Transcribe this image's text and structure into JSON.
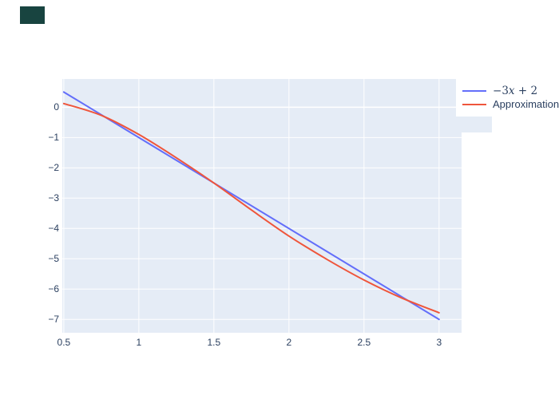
{
  "page": {
    "background": "#ffffff",
    "text_color": "#2a3f5f"
  },
  "corner_badge": {
    "color": "#184440"
  },
  "chart_data": {
    "type": "line",
    "title": "",
    "xlabel": "",
    "ylabel": "",
    "grid": true,
    "plot_bgcolor": "#E5ECF6",
    "grid_color": "#FFFFFF",
    "tick_color": "#2a3f5f",
    "x_range": [
      0.49,
      3.15
    ],
    "y_range": [
      -7.44,
      0.93
    ],
    "x_ticks": [
      {
        "v": 0.5,
        "label": "0.5"
      },
      {
        "v": 1,
        "label": "1"
      },
      {
        "v": 1.5,
        "label": "1.5"
      },
      {
        "v": 2,
        "label": "2"
      },
      {
        "v": 2.5,
        "label": "2.5"
      },
      {
        "v": 3,
        "label": "3"
      }
    ],
    "y_ticks": [
      {
        "v": 0,
        "label": "0"
      },
      {
        "v": -1,
        "label": "−1"
      },
      {
        "v": -2,
        "label": "−2"
      },
      {
        "v": -3,
        "label": "−3"
      },
      {
        "v": -4,
        "label": "−4"
      },
      {
        "v": -5,
        "label": "−5"
      },
      {
        "v": -6,
        "label": "−6"
      },
      {
        "v": -7,
        "label": "−7"
      }
    ],
    "legend_position": "top-right-outside",
    "legend_bgcolor": "#ffffff",
    "series": [
      {
        "name": "−3x + 2",
        "math": true,
        "color": "#636EFA",
        "line_width": 2,
        "x": [
          0.5,
          3.0
        ],
        "y": [
          0.5,
          -7.0
        ]
      },
      {
        "name": "Approximation",
        "math": false,
        "color": "#EF553B",
        "line_width": 2,
        "x": [
          0.5,
          0.75,
          1.0,
          1.25,
          1.5,
          1.75,
          2.0,
          2.25,
          2.5,
          2.75,
          3.0
        ],
        "y": [
          0.12,
          -0.27,
          -0.9,
          -1.67,
          -2.5,
          -3.39,
          -4.25,
          -5.01,
          -5.7,
          -6.29,
          -6.78
        ]
      }
    ]
  }
}
